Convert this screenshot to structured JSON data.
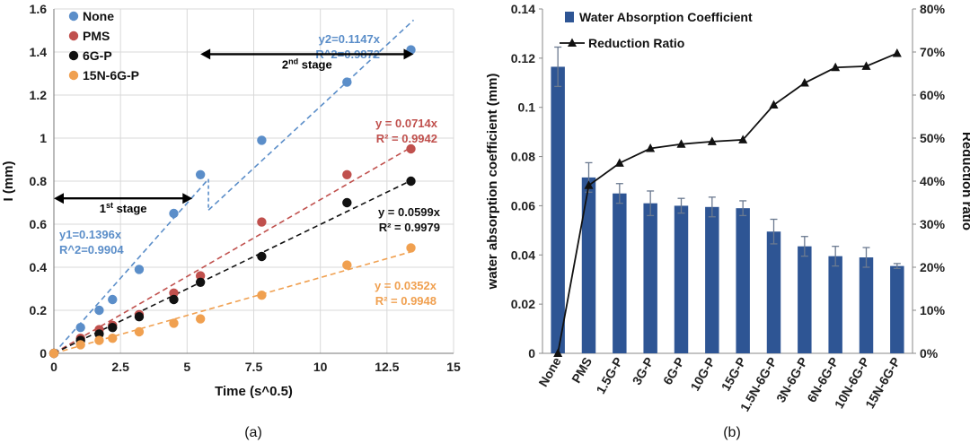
{
  "chart_data": [
    {
      "type": "scatter",
      "panel_label": "(a)",
      "xlabel": "Time (s^0.5)",
      "ylabel": "I (mm)",
      "xlim": [
        0,
        15
      ],
      "ylim": [
        0,
        1.6
      ],
      "xticks": [
        0,
        2.5,
        5,
        7.5,
        10,
        12.5,
        15
      ],
      "xtick_labels": [
        "0",
        "2.5",
        "5",
        "7.5",
        "10",
        "12.5",
        "15"
      ],
      "yticks": [
        0,
        0.2,
        0.4,
        0.6,
        0.8,
        1.0,
        1.2,
        1.4,
        1.6
      ],
      "ytick_labels": [
        "0",
        "0.2",
        "0.4",
        "0.6",
        "0.8",
        "1",
        "1.2",
        "1.4",
        "1.6"
      ],
      "grid": true,
      "legend_position": "top-left",
      "series": [
        {
          "name": "None",
          "color": "#5b8ec9",
          "x": [
            0,
            1,
            1.7,
            2.2,
            3.2,
            4.5,
            5.5,
            7.8,
            11,
            13.4
          ],
          "y": [
            0,
            0.12,
            0.2,
            0.25,
            0.39,
            0.65,
            0.83,
            0.99,
            1.26,
            1.41
          ],
          "fits": [
            {
              "slope": 0.1396,
              "x": [
                0,
                5.8
              ],
              "label1": "y1=0.1396x",
              "label2": "R^2=0.9904"
            },
            {
              "slope": 0.1147,
              "x": [
                5.8,
                13.5
              ],
              "label1": "y2=0.1147x",
              "label2": "R^2=0.9872"
            }
          ]
        },
        {
          "name": "PMS",
          "color": "#c0504d",
          "x": [
            0,
            1,
            1.7,
            2.2,
            3.2,
            4.5,
            5.5,
            7.8,
            11,
            13.4
          ],
          "y": [
            0,
            0.07,
            0.11,
            0.13,
            0.18,
            0.28,
            0.36,
            0.61,
            0.83,
            0.95
          ],
          "fits": [
            {
              "slope": 0.0714,
              "x": [
                0,
                13.5
              ],
              "label1": "y = 0.0714x",
              "label2": "R² = 0.9942"
            }
          ]
        },
        {
          "name": "6G-P",
          "color": "#111111",
          "x": [
            0,
            1,
            1.7,
            2.2,
            3.2,
            4.5,
            5.5,
            7.8,
            11,
            13.4
          ],
          "y": [
            0,
            0.06,
            0.09,
            0.12,
            0.17,
            0.25,
            0.33,
            0.45,
            0.7,
            0.8
          ],
          "fits": [
            {
              "slope": 0.0599,
              "x": [
                0,
                13.5
              ],
              "label1": "y = 0.0599x",
              "label2": "R² = 0.9979"
            }
          ]
        },
        {
          "name": "15N-6G-P",
          "color": "#f0a050",
          "x": [
            0,
            1,
            1.7,
            2.2,
            3.2,
            4.5,
            5.5,
            7.8,
            11,
            13.4
          ],
          "y": [
            0,
            0.04,
            0.06,
            0.07,
            0.1,
            0.14,
            0.16,
            0.27,
            0.41,
            0.49
          ],
          "fits": [
            {
              "slope": 0.0352,
              "x": [
                0,
                13.5
              ],
              "label1": "y = 0.0352x",
              "label2": "R² = 0.9948"
            }
          ]
        }
      ],
      "annotations": [
        {
          "base": "1",
          "sup": "st",
          "rest": " stage",
          "x_range": [
            0,
            5.2
          ],
          "y": 0.72
        },
        {
          "base": "2",
          "sup": "nd",
          "rest": " stage",
          "x_range": [
            5.5,
            13.5
          ],
          "y": 1.39
        }
      ]
    },
    {
      "type": "bar",
      "panel_label": "(b)",
      "categories": [
        "None",
        "PMS",
        "1.5G-P",
        "3G-P",
        "6G-P",
        "10G-P",
        "15G-P",
        "1.5N-6G-P",
        "3N-6G-P",
        "6N-6G-P",
        "10N-6G-P",
        "15N-6G-P"
      ],
      "ylabel": "water absorption coefficient (mm)",
      "ylabel_right": "Reduction ratio",
      "ylim": [
        0,
        0.14
      ],
      "yticks": [
        0,
        0.02,
        0.04,
        0.06,
        0.08,
        0.1,
        0.12,
        0.14
      ],
      "ytick_labels": [
        "0",
        "0.02",
        "0.04",
        "0.06",
        "0.08",
        "0.1",
        "0.12",
        "0.14"
      ],
      "ylim_right": [
        0,
        80
      ],
      "yticks_right": [
        0,
        10,
        20,
        30,
        40,
        50,
        60,
        70,
        80
      ],
      "ytick_labels_right": [
        "0%",
        "10%",
        "20%",
        "30%",
        "40%",
        "50%",
        "60%",
        "70%",
        "80%"
      ],
      "legend_position": "top-left",
      "series": [
        {
          "name": "Water Absorption Coefficient",
          "kind": "bar",
          "axis": "left",
          "color": "#2e5594",
          "values": [
            0.1165,
            0.0715,
            0.065,
            0.061,
            0.06,
            0.0595,
            0.059,
            0.0495,
            0.0435,
            0.0395,
            0.039,
            0.0355
          ],
          "errors": [
            0.008,
            0.006,
            0.004,
            0.005,
            0.003,
            0.004,
            0.003,
            0.005,
            0.004,
            0.004,
            0.004,
            0.001
          ]
        },
        {
          "name": "Reduction Ratio",
          "kind": "line",
          "axis": "right",
          "color": "#111111",
          "marker": "triangle",
          "values": [
            0,
            39,
            44.2,
            47.6,
            48.6,
            49.2,
            49.6,
            57.7,
            62.8,
            66.4,
            66.7,
            69.7
          ]
        }
      ]
    }
  ]
}
